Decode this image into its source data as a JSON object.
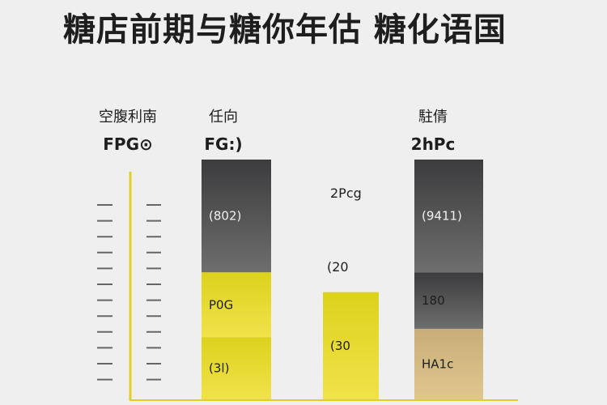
{
  "title": "糖店前期与糖你年估 糖化语国",
  "headers": [
    {
      "label": "空腹利南",
      "sub": "FPG⊙"
    },
    {
      "label": "任向",
      "sub": "FG:)"
    },
    {
      "label": "駐倩",
      "sub": "2hPc"
    }
  ],
  "annotations": {
    "mid_top": "2Pcg",
    "mid_value": "(20"
  },
  "colors": {
    "dark_top": "#3c3c3e",
    "dark_bottom": "#6e6e6e",
    "yellow_top": "#dcd21c",
    "yellow_bottom": "#f1e24a",
    "tan_top": "#c7ae78",
    "tan_bottom": "#dfc78f",
    "axis": "#e0cf27",
    "tick": "#666666"
  },
  "chart_data": {
    "type": "bar",
    "title": "糖店前期与糖你年估 糖化语国",
    "categories": [
      "FPG⊙",
      "FG:)",
      "2Pcg",
      "2hPc"
    ],
    "segments": [
      {
        "category": "FG:)",
        "label": "(802)",
        "from": 45,
        "to": 85,
        "color": "dark"
      },
      {
        "category": "FG:)",
        "label": "P0G",
        "from": 22,
        "to": 45,
        "color": "yellow"
      },
      {
        "category": "FG:)",
        "label": "(3l)",
        "from": 0,
        "to": 22,
        "color": "yellow"
      },
      {
        "category": "2Pcg",
        "label": "(30",
        "from": 0,
        "to": 38,
        "color": "yellow"
      },
      {
        "category": "2hPc",
        "label": "(9411)",
        "from": 45,
        "to": 85,
        "color": "dark"
      },
      {
        "category": "2hPc",
        "label": "180",
        "from": 25,
        "to": 45,
        "color": "dark"
      },
      {
        "category": "2hPc",
        "label": "HA1c",
        "from": 0,
        "to": 25,
        "color": "tan"
      }
    ],
    "ylim": [
      0,
      85
    ],
    "grid": false
  }
}
